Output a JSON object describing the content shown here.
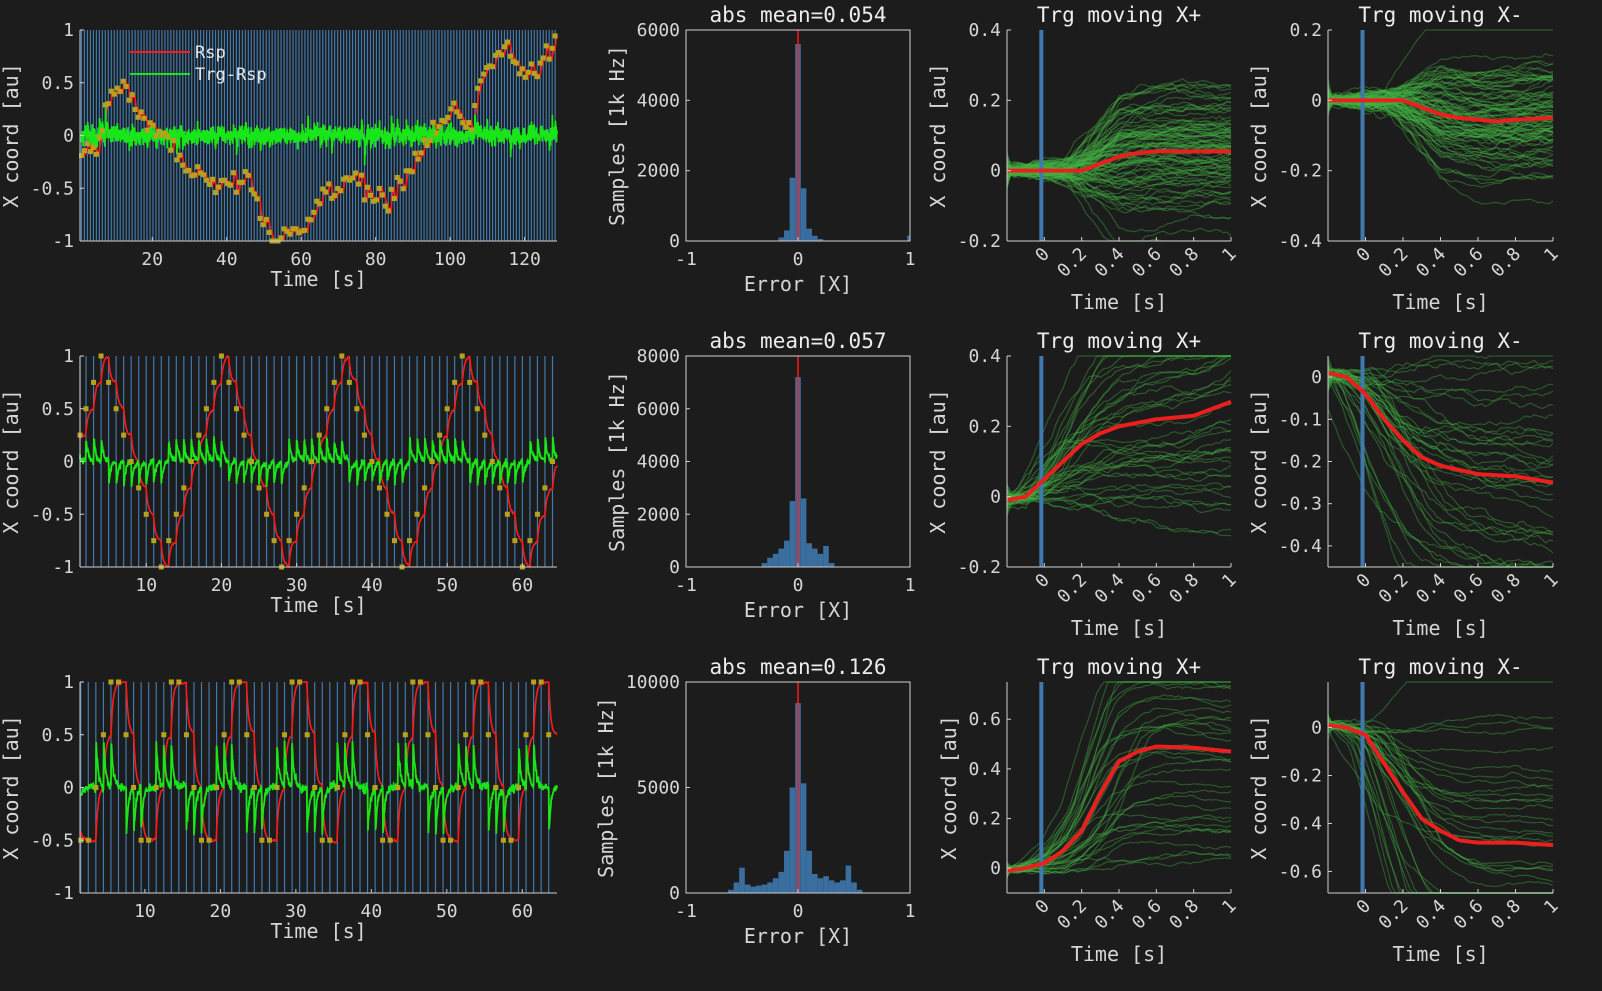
{
  "colors": {
    "background": "#1c1c1c",
    "axis": "#d0d0d0",
    "target_line_blue": "#3f79ad",
    "rsp_red": "#ff1a1a",
    "error_green": "#19e619",
    "target_dot": "#b8a21c",
    "trace_green": "#43b443",
    "mean_red": "#ec1f1f",
    "hist_blue": "#3a6e9e"
  },
  "chart_data": [
    {
      "id": "ts1",
      "type": "line",
      "row": 0,
      "xlabel": "Time [s]",
      "ylabel": "X coord [au]",
      "xlim": [
        0.6,
        128.7
      ],
      "ylim": [
        -1,
        1
      ],
      "xticks": [
        20,
        40,
        60,
        80,
        100,
        120
      ],
      "xtick_labels": [
        "20",
        "40",
        "60",
        "80",
        "100",
        "120"
      ],
      "yticks": [
        -1,
        -0.5,
        0,
        0.5,
        1
      ],
      "ytick_labels": [
        "-1",
        "-0.5",
        "0",
        "0.5",
        "1"
      ],
      "legend": {
        "entries": [
          "Rsp",
          "Trg-Rsp"
        ],
        "placement": "top-left"
      },
      "target": {
        "kind": "keypoints",
        "step_s": 0.8,
        "t_start": 1,
        "t_end": 128.5,
        "points": [
          [
            1,
            -0.15
          ],
          [
            3,
            -0.2
          ],
          [
            5,
            -0.15
          ],
          [
            7,
            0.2
          ],
          [
            9,
            0.35
          ],
          [
            12,
            0.5
          ],
          [
            14,
            0.35
          ],
          [
            16,
            0.3
          ],
          [
            18,
            0.1
          ],
          [
            22,
            0.05
          ],
          [
            25,
            -0.1
          ],
          [
            28,
            -0.3
          ],
          [
            30,
            -0.4
          ],
          [
            32,
            -0.25
          ],
          [
            35,
            -0.45
          ],
          [
            38,
            -0.5
          ],
          [
            42,
            -0.5
          ],
          [
            46,
            -0.4
          ],
          [
            47,
            -0.6
          ],
          [
            50,
            -0.8
          ],
          [
            53,
            -1.0
          ],
          [
            57,
            -0.9
          ],
          [
            61,
            -0.85
          ],
          [
            64,
            -0.7
          ],
          [
            66,
            -0.6
          ],
          [
            70,
            -0.5
          ],
          [
            73,
            -0.4
          ],
          [
            76,
            -0.45
          ],
          [
            80,
            -0.55
          ],
          [
            84,
            -0.55
          ],
          [
            88,
            -0.4
          ],
          [
            92,
            -0.1
          ],
          [
            96,
            0.0
          ],
          [
            99,
            0.2
          ],
          [
            101,
            0.3
          ],
          [
            103,
            0.05
          ],
          [
            106,
            0.15
          ],
          [
            108,
            0.5
          ],
          [
            110,
            0.7
          ],
          [
            112,
            0.75
          ],
          [
            115,
            0.85
          ],
          [
            118,
            0.65
          ],
          [
            120,
            0.6
          ],
          [
            123,
            0.65
          ],
          [
            125,
            0.75
          ],
          [
            128,
            1.0
          ]
        ],
        "jitter": 0.06
      },
      "response_lag_s": 0.25,
      "error_noise": 0.04
    },
    {
      "id": "h1",
      "type": "bar",
      "row": 0,
      "title": "abs mean=0.054",
      "xlabel": "Error [X]",
      "ylabel": "Samples [1k Hz]",
      "xlim": [
        -1,
        1
      ],
      "ylim": [
        0,
        6000
      ],
      "xticks": [
        -1,
        0,
        1
      ],
      "xtick_labels": [
        "-1",
        "0",
        "1"
      ],
      "yticks": [
        0,
        2000,
        4000,
        6000
      ],
      "ytick_labels": [
        "0",
        "2000",
        "4000",
        "6000"
      ],
      "bin_start": -1,
      "bin_step": 0.05,
      "values": [
        0,
        0,
        0,
        0,
        0,
        0,
        0,
        0,
        0,
        0,
        0,
        0,
        0,
        0,
        0,
        0,
        0,
        100,
        300,
        1800,
        5600,
        1500,
        350,
        150,
        60,
        0,
        0,
        0,
        0,
        0,
        0,
        0,
        0,
        0,
        0,
        0,
        0,
        0,
        0,
        0,
        150
      ],
      "marker_x": 0
    },
    {
      "id": "p1",
      "type": "line",
      "row": 0,
      "title": "Trg moving X+",
      "xlabel": "Time [s]",
      "ylabel": "X coord [au]",
      "xlim": [
        -0.2,
        1
      ],
      "ylim": [
        -0.2,
        0.4
      ],
      "xticks": [
        0,
        0.2,
        0.4,
        0.6,
        0.8,
        1
      ],
      "xtick_labels": [
        "0",
        "0.2",
        "0.4",
        "0.6",
        "0.8",
        "1"
      ],
      "yticks": [
        -0.2,
        0,
        0.2,
        0.4
      ],
      "ytick_labels": [
        "-0.2",
        "0",
        "0.2",
        "0.4"
      ],
      "onset_x": 0,
      "n_traces": 90,
      "trace_spread": 0.08,
      "mean": {
        "t": [
          -0.2,
          -0.1,
          0,
          0.1,
          0.2,
          0.3,
          0.4,
          0.5,
          0.6,
          0.8,
          1
        ],
        "y": [
          0,
          0,
          0,
          0,
          0,
          0.02,
          0.04,
          0.05,
          0.055,
          0.055,
          0.055
        ]
      }
    },
    {
      "id": "m1",
      "type": "line",
      "row": 0,
      "title": "Trg moving X-",
      "xlabel": "Time [s]",
      "ylabel": "X coord [au]",
      "xlim": [
        -0.2,
        1
      ],
      "ylim": [
        -0.4,
        0.2
      ],
      "xticks": [
        0,
        0.2,
        0.4,
        0.6,
        0.8,
        1
      ],
      "xtick_labels": [
        "0",
        "0.2",
        "0.4",
        "0.6",
        "0.8",
        "1"
      ],
      "yticks": [
        -0.4,
        -0.2,
        0,
        0.2
      ],
      "ytick_labels": [
        "-0.4",
        "-0.2",
        "0",
        "0.2"
      ],
      "onset_x": 0,
      "n_traces": 90,
      "trace_spread": 0.07,
      "mean": {
        "t": [
          -0.2,
          -0.1,
          0,
          0.1,
          0.2,
          0.3,
          0.4,
          0.5,
          0.6,
          0.7,
          0.8,
          1
        ],
        "y": [
          0,
          0,
          0,
          0,
          0,
          -0.02,
          -0.04,
          -0.05,
          -0.055,
          -0.06,
          -0.055,
          -0.05
        ]
      }
    },
    {
      "id": "ts2",
      "type": "line",
      "row": 1,
      "xlabel": "Time [s]",
      "ylabel": "X coord [au]",
      "xlim": [
        1.2,
        64.6
      ],
      "ylim": [
        -1,
        1
      ],
      "xticks": [
        10,
        20,
        30,
        40,
        50,
        60
      ],
      "xtick_labels": [
        "10",
        "20",
        "30",
        "40",
        "50",
        "60"
      ],
      "yticks": [
        -1,
        -0.5,
        0,
        0.5,
        1
      ],
      "ytick_labels": [
        "-1",
        "-0.5",
        "0",
        "0.5",
        "1"
      ],
      "target": {
        "kind": "triangle",
        "step_s": 1,
        "step_size": 0.25,
        "first_peak_s": 4,
        "period_s": 16,
        "t_start": 1,
        "t_end": 64
      },
      "response_lag_s": 0.3,
      "error_noise": 0.015
    },
    {
      "id": "h2",
      "type": "bar",
      "row": 1,
      "title": "abs mean=0.057",
      "xlabel": "Error [X]",
      "ylabel": "Samples [1k Hz]",
      "xlim": [
        -1,
        1
      ],
      "ylim": [
        0,
        8000
      ],
      "xticks": [
        -1,
        0,
        1
      ],
      "xtick_labels": [
        "-1",
        "0",
        "1"
      ],
      "yticks": [
        0,
        2000,
        4000,
        6000,
        8000
      ],
      "ytick_labels": [
        "0",
        "2000",
        "4000",
        "6000",
        "8000"
      ],
      "bin_start": -1,
      "bin_step": 0.05,
      "values": [
        0,
        0,
        0,
        0,
        0,
        0,
        0,
        0,
        0,
        0,
        0,
        0,
        0,
        0,
        150,
        350,
        500,
        700,
        1000,
        2500,
        7200,
        2600,
        900,
        700,
        500,
        800,
        150,
        0,
        0,
        0,
        0,
        0,
        0,
        0,
        0,
        0,
        0,
        0,
        0,
        0,
        0
      ],
      "marker_x": 0
    },
    {
      "id": "p2",
      "type": "line",
      "row": 1,
      "title": "Trg moving X+",
      "xlabel": "Time [s]",
      "ylabel": "X coord [au]",
      "xlim": [
        -0.2,
        1
      ],
      "ylim": [
        -0.2,
        0.4
      ],
      "xticks": [
        0,
        0.2,
        0.4,
        0.6,
        0.8,
        1
      ],
      "xtick_labels": [
        "0",
        "0.2",
        "0.4",
        "0.6",
        "0.8",
        "1"
      ],
      "yticks": [
        -0.2,
        0,
        0.2,
        0.4
      ],
      "ytick_labels": [
        "-0.2",
        "0",
        "0.2",
        "0.4"
      ],
      "onset_x": 0,
      "n_traces": 40,
      "trace_spread": 0.05,
      "mean": {
        "t": [
          -0.2,
          -0.1,
          0,
          0.1,
          0.2,
          0.3,
          0.4,
          0.6,
          0.8,
          1
        ],
        "y": [
          -0.01,
          0,
          0.05,
          0.1,
          0.15,
          0.18,
          0.2,
          0.22,
          0.23,
          0.27
        ]
      }
    },
    {
      "id": "m2",
      "type": "line",
      "row": 1,
      "title": "Trg moving X-",
      "xlabel": "Time [s]",
      "ylabel": "X coord [au]",
      "xlim": [
        -0.2,
        1
      ],
      "ylim": [
        -0.45,
        0.05
      ],
      "xticks": [
        0,
        0.2,
        0.4,
        0.6,
        0.8,
        1
      ],
      "xtick_labels": [
        "0",
        "0.2",
        "0.4",
        "0.6",
        "0.8",
        "1"
      ],
      "yticks": [
        -0.4,
        -0.3,
        -0.2,
        -0.1,
        0
      ],
      "ytick_labels": [
        "-0.4",
        "-0.3",
        "-0.2",
        "-0.1",
        "0"
      ],
      "onset_x": 0,
      "n_traces": 40,
      "trace_spread": 0.04,
      "mean": {
        "t": [
          -0.2,
          -0.1,
          0,
          0.1,
          0.2,
          0.3,
          0.4,
          0.6,
          0.8,
          1
        ],
        "y": [
          0.01,
          0,
          -0.04,
          -0.1,
          -0.15,
          -0.19,
          -0.21,
          -0.23,
          -0.235,
          -0.25
        ]
      }
    },
    {
      "id": "ts3",
      "type": "line",
      "row": 2,
      "xlabel": "Time [s]",
      "ylabel": "X coord [au]",
      "xlim": [
        1.4,
        64.6
      ],
      "ylim": [
        -1,
        1
      ],
      "xticks": [
        10,
        20,
        30,
        40,
        50,
        60
      ],
      "xtick_labels": [
        "10",
        "20",
        "30",
        "40",
        "50",
        "60"
      ],
      "yticks": [
        -1,
        -0.5,
        0,
        0.5,
        1
      ],
      "ytick_labels": [
        "-1",
        "-0.5",
        "0",
        "0.5",
        "1"
      ],
      "target": {
        "kind": "triangle",
        "step_s": 1,
        "step_size": 0.5,
        "first_peak_s": 6,
        "period_s": 8,
        "t_start": 1.5,
        "t_end": 64
      },
      "response_lag_s": 0.3,
      "error_noise": 0.02
    },
    {
      "id": "h3",
      "type": "bar",
      "row": 2,
      "title": "abs mean=0.126",
      "xlabel": "Error [X]",
      "ylabel": "Samples [1k Hz]",
      "xlim": [
        -1,
        1
      ],
      "ylim": [
        0,
        10000
      ],
      "xticks": [
        -1,
        0,
        1
      ],
      "xtick_labels": [
        "-1",
        "0",
        "1"
      ],
      "yticks": [
        0,
        5000,
        10000
      ],
      "ytick_labels": [
        "0",
        "5000",
        "10000"
      ],
      "bin_start": -1,
      "bin_step": 0.05,
      "values": [
        0,
        0,
        0,
        0,
        0,
        0,
        0,
        0,
        150,
        500,
        1200,
        400,
        300,
        350,
        400,
        500,
        700,
        1000,
        2000,
        5000,
        9000,
        5200,
        2000,
        900,
        700,
        800,
        600,
        500,
        600,
        1300,
        500,
        150,
        0,
        0,
        0,
        0,
        0,
        0,
        0,
        0,
        0
      ],
      "marker_x": 0
    },
    {
      "id": "p3",
      "type": "line",
      "row": 2,
      "title": "Trg moving X+",
      "xlabel": "Time [s]",
      "ylabel": "X coord [au]",
      "xlim": [
        -0.2,
        1
      ],
      "ylim": [
        -0.1,
        0.75
      ],
      "xticks": [
        0,
        0.2,
        0.4,
        0.6,
        0.8,
        1
      ],
      "xtick_labels": [
        "0",
        "0.2",
        "0.4",
        "0.6",
        "0.8",
        "1"
      ],
      "yticks": [
        0,
        0.2,
        0.4,
        0.6
      ],
      "ytick_labels": [
        "0",
        "0.2",
        "0.4",
        "0.6"
      ],
      "onset_x": 0,
      "n_traces": 35,
      "trace_spread": 0.05,
      "mean": {
        "t": [
          -0.2,
          -0.1,
          0,
          0.1,
          0.2,
          0.3,
          0.4,
          0.5,
          0.6,
          0.8,
          1
        ],
        "y": [
          -0.01,
          0,
          0.02,
          0.07,
          0.15,
          0.3,
          0.43,
          0.47,
          0.49,
          0.485,
          0.47
        ]
      }
    },
    {
      "id": "m3",
      "type": "line",
      "row": 2,
      "title": "Trg moving X-",
      "xlabel": "Time [s]",
      "ylabel": "X coord [au]",
      "xlim": [
        -0.2,
        1
      ],
      "ylim": [
        -0.69,
        0.19
      ],
      "xticks": [
        0,
        0.2,
        0.4,
        0.6,
        0.8,
        1
      ],
      "xtick_labels": [
        "0",
        "0.2",
        "0.4",
        "0.6",
        "0.8",
        "1"
      ],
      "yticks": [
        -0.6,
        -0.4,
        -0.2,
        0
      ],
      "ytick_labels": [
        "-0.6",
        "-0.4",
        "-0.2",
        "0"
      ],
      "onset_x": 0,
      "n_traces": 35,
      "trace_spread": 0.05,
      "mean": {
        "t": [
          -0.2,
          -0.1,
          0,
          0.1,
          0.2,
          0.3,
          0.4,
          0.5,
          0.6,
          0.8,
          1
        ],
        "y": [
          0.01,
          0,
          -0.03,
          -0.15,
          -0.27,
          -0.38,
          -0.43,
          -0.47,
          -0.48,
          -0.48,
          -0.49
        ]
      }
    }
  ]
}
